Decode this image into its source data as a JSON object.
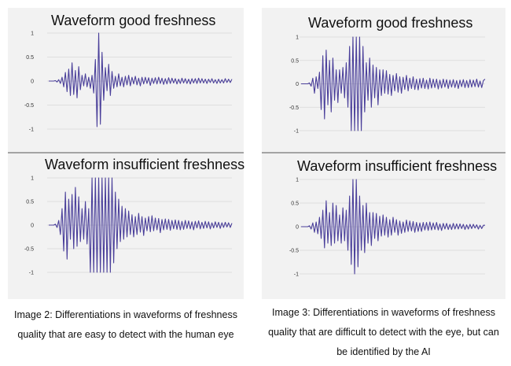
{
  "captions": {
    "left": "Image 2: Differentiations in waveforms of freshness quality that are easy to detect with the human eye",
    "right": "Image 3: Differentiations in waveforms of freshness quality that are difficult to detect with the eye, but can be identified by the AI"
  },
  "colors": {
    "panel_bg": "#f2f2f2",
    "wave": "#4a3f9a",
    "grid": "#d8d8d8"
  },
  "chart_data": [
    {
      "type": "line",
      "title": "Waveform good freshness",
      "yticks": [
        "1",
        "0.5",
        "0",
        "-0.5",
        "-1"
      ],
      "ylim": [
        -1,
        1
      ],
      "x": [
        0,
        1,
        2,
        3,
        4,
        5,
        6,
        7,
        8,
        9,
        10,
        11,
        12,
        13,
        14,
        15,
        16,
        17,
        18,
        19,
        20,
        21,
        22,
        23,
        24,
        25,
        26,
        27,
        28,
        29,
        30,
        31,
        32,
        33,
        34,
        35,
        36,
        37,
        38,
        39,
        40,
        41,
        42,
        43,
        44,
        45,
        46,
        47,
        48,
        49,
        50,
        51,
        52,
        53,
        54,
        55,
        56,
        57,
        58,
        59,
        60,
        61,
        62,
        63,
        64,
        65,
        66,
        67,
        68,
        69,
        70,
        71,
        72,
        73,
        74,
        75,
        76,
        77,
        78,
        79,
        80,
        81,
        82,
        83,
        84,
        85,
        86,
        87,
        88,
        89,
        90,
        91,
        92,
        93,
        94,
        95,
        96,
        97,
        98,
        99,
        100,
        101,
        102,
        103,
        104,
        105,
        106,
        107,
        108,
        109,
        110
      ],
      "series": [
        {
          "values": [
            0,
            0,
            0,
            0,
            0.01,
            -0.02,
            0.03,
            -0.05,
            0.08,
            -0.12,
            0.18,
            -0.22,
            0.25,
            -0.3,
            0.38,
            -0.28,
            0.22,
            -0.35,
            0.3,
            -0.18,
            0.12,
            -0.1,
            0.15,
            -0.12,
            0.08,
            -0.15,
            0.12,
            -0.25,
            0.45,
            -0.95,
            1.0,
            -0.9,
            0.6,
            -0.4,
            0.28,
            -0.2,
            0.35,
            -0.3,
            0.2,
            -0.15,
            0.1,
            -0.12,
            0.15,
            -0.1,
            0.08,
            -0.12,
            0.1,
            -0.08,
            0.12,
            -0.1,
            0.08,
            -0.06,
            0.1,
            -0.08,
            0.06,
            -0.1,
            0.08,
            -0.06,
            0.08,
            -0.05,
            0.07,
            -0.09,
            0.06,
            -0.05,
            0.07,
            -0.06,
            0.08,
            -0.05,
            0.06,
            -0.07,
            0.05,
            -0.06,
            0.07,
            -0.05,
            0.06,
            -0.04,
            0.05,
            -0.06,
            0.04,
            -0.05,
            0.06,
            -0.04,
            0.05,
            -0.05,
            0.04,
            -0.06,
            0.05,
            -0.04,
            0.05,
            -0.05,
            0.06,
            -0.04,
            0.05,
            -0.04,
            0.04,
            -0.05,
            0.04,
            -0.03,
            0.05,
            -0.04,
            0.03,
            -0.05,
            0.04,
            -0.04,
            0.03,
            -0.04,
            0.05,
            -0.03,
            0.04,
            -0.03,
            0.04
          ]
        }
      ]
    },
    {
      "type": "line",
      "title": "Waveform insufficient freshness",
      "yticks": [
        "1",
        "0.5",
        "0",
        "-0.5",
        "-1"
      ],
      "ylim": [
        -1,
        1
      ],
      "x": [
        0,
        1,
        2,
        3,
        4,
        5,
        6,
        7,
        8,
        9,
        10,
        11,
        12,
        13,
        14,
        15,
        16,
        17,
        18,
        19,
        20,
        21,
        22,
        23,
        24,
        25,
        26,
        27,
        28,
        29,
        30,
        31,
        32,
        33,
        34,
        35,
        36,
        37,
        38,
        39,
        40,
        41,
        42,
        43,
        44,
        45,
        46,
        47,
        48,
        49,
        50,
        51,
        52,
        53,
        54,
        55,
        56,
        57,
        58,
        59,
        60,
        61,
        62,
        63,
        64,
        65,
        66,
        67,
        68,
        69,
        70,
        71,
        72,
        73,
        74,
        75,
        76,
        77,
        78,
        79,
        80,
        81,
        82,
        83,
        84,
        85,
        86,
        87,
        88,
        89,
        90,
        91,
        92,
        93,
        94,
        95,
        96,
        97,
        98,
        99,
        100,
        101,
        102,
        103,
        104,
        105,
        106,
        107,
        108,
        109,
        110
      ],
      "series": [
        {
          "values": [
            0,
            0,
            0,
            0,
            0.02,
            -0.05,
            0.1,
            -0.2,
            0.35,
            -0.55,
            0.7,
            -0.72,
            0.55,
            -0.3,
            0.65,
            -0.5,
            0.8,
            -0.45,
            0.6,
            -0.35,
            0.35,
            -0.3,
            0.5,
            -0.4,
            0.35,
            -1.0,
            1.0,
            -1.0,
            1.0,
            -1.0,
            1.0,
            -1.0,
            1.0,
            -1.0,
            1.0,
            -1.0,
            1.0,
            -1.0,
            1.0,
            -0.8,
            0.7,
            -0.5,
            0.55,
            -0.35,
            0.4,
            -0.3,
            0.35,
            -0.25,
            0.3,
            -0.2,
            0.22,
            -0.25,
            0.18,
            -0.2,
            0.25,
            -0.15,
            0.18,
            -0.22,
            0.15,
            -0.12,
            0.18,
            -0.14,
            0.2,
            -0.12,
            0.15,
            -0.1,
            0.14,
            -0.16,
            0.12,
            -0.1,
            0.13,
            -0.09,
            0.12,
            -0.11,
            0.1,
            -0.08,
            0.11,
            -0.09,
            0.1,
            -0.1,
            0.08,
            -0.09,
            0.1,
            -0.07,
            0.09,
            -0.08,
            0.07,
            -0.1,
            0.08,
            -0.06,
            0.09,
            -0.08,
            0.06,
            -0.07,
            0.08,
            -0.06,
            0.07,
            -0.08,
            0.05,
            -0.06,
            0.07,
            -0.05,
            0.06,
            -0.07,
            0.05,
            -0.05,
            0.06,
            -0.04,
            0.05,
            -0.05,
            0.04
          ]
        }
      ]
    },
    {
      "type": "line",
      "title": "Waveform good freshness",
      "yticks": [
        "1",
        "0.5",
        "0",
        "-0.5",
        "-1"
      ],
      "ylim": [
        -1,
        1
      ],
      "x": [
        0,
        1,
        2,
        3,
        4,
        5,
        6,
        7,
        8,
        9,
        10,
        11,
        12,
        13,
        14,
        15,
        16,
        17,
        18,
        19,
        20,
        21,
        22,
        23,
        24,
        25,
        26,
        27,
        28,
        29,
        30,
        31,
        32,
        33,
        34,
        35,
        36,
        37,
        38,
        39,
        40,
        41,
        42,
        43,
        44,
        45,
        46,
        47,
        48,
        49,
        50,
        51,
        52,
        53,
        54,
        55,
        56,
        57,
        58,
        59,
        60,
        61,
        62,
        63,
        64,
        65,
        66,
        67,
        68,
        69,
        70,
        71,
        72,
        73,
        74,
        75,
        76,
        77,
        78,
        79,
        80,
        81,
        82,
        83,
        84,
        85,
        86,
        87,
        88,
        89,
        90,
        91,
        92,
        93,
        94,
        95,
        96,
        97,
        98,
        99,
        100,
        101,
        102,
        103,
        104,
        105,
        106,
        107,
        108,
        109,
        110
      ],
      "series": [
        {
          "values": [
            0,
            0,
            0,
            0,
            0,
            0.02,
            -0.05,
            0.12,
            -0.2,
            0.15,
            -0.1,
            0.25,
            -0.55,
            0.6,
            -0.75,
            0.72,
            -0.45,
            0.5,
            -0.6,
            0.55,
            -0.35,
            0.3,
            -0.4,
            0.3,
            -0.2,
            0.35,
            -0.3,
            0.45,
            -0.5,
            0.8,
            -1.0,
            1.0,
            -1.0,
            1.0,
            -1.0,
            1.0,
            -1.0,
            0.8,
            -0.6,
            0.45,
            -0.35,
            0.55,
            -0.5,
            0.4,
            -0.3,
            0.35,
            -0.45,
            0.3,
            -0.25,
            0.3,
            -0.2,
            0.28,
            -0.22,
            0.2,
            -0.25,
            0.18,
            -0.15,
            0.22,
            -0.18,
            0.15,
            -0.2,
            0.14,
            -0.12,
            0.18,
            -0.15,
            0.12,
            -0.1,
            0.15,
            -0.12,
            0.1,
            -0.13,
            0.11,
            -0.09,
            0.12,
            -0.1,
            0.08,
            -0.11,
            0.12,
            -0.09,
            0.1,
            -0.08,
            0.1,
            -0.11,
            0.08,
            -0.09,
            0.1,
            -0.07,
            0.09,
            -0.1,
            0.08,
            -0.07,
            0.09,
            -0.08,
            0.07,
            -0.1,
            0.08,
            -0.06,
            0.09,
            -0.08,
            0.07,
            -0.08,
            0.09,
            -0.07,
            0.08,
            -0.06,
            0.1,
            -0.07,
            0.06,
            -0.08,
            0.07,
            0.1
          ]
        }
      ]
    },
    {
      "type": "line",
      "title": "Waveform insufficient freshness",
      "yticks": [
        "1",
        "0.5",
        "0",
        "-0.5",
        "-1"
      ],
      "ylim": [
        -1,
        1
      ],
      "x": [
        0,
        1,
        2,
        3,
        4,
        5,
        6,
        7,
        8,
        9,
        10,
        11,
        12,
        13,
        14,
        15,
        16,
        17,
        18,
        19,
        20,
        21,
        22,
        23,
        24,
        25,
        26,
        27,
        28,
        29,
        30,
        31,
        32,
        33,
        34,
        35,
        36,
        37,
        38,
        39,
        40,
        41,
        42,
        43,
        44,
        45,
        46,
        47,
        48,
        49,
        50,
        51,
        52,
        53,
        54,
        55,
        56,
        57,
        58,
        59,
        60,
        61,
        62,
        63,
        64,
        65,
        66,
        67,
        68,
        69,
        70,
        71,
        72,
        73,
        74,
        75,
        76,
        77,
        78,
        79,
        80,
        81,
        82,
        83,
        84,
        85,
        86,
        87,
        88,
        89,
        90,
        91,
        92,
        93,
        94,
        95,
        96,
        97,
        98,
        99,
        100,
        101,
        102,
        103,
        104,
        105,
        106,
        107,
        108,
        109,
        110
      ],
      "series": [
        {
          "values": [
            0,
            0,
            0,
            0,
            0,
            0.02,
            -0.05,
            0.08,
            -0.12,
            0.1,
            -0.15,
            0.2,
            -0.25,
            0.35,
            -0.45,
            0.55,
            -0.35,
            0.3,
            -0.4,
            0.5,
            -0.35,
            0.45,
            -0.3,
            0.25,
            -0.35,
            0.4,
            -0.3,
            0.35,
            -0.5,
            0.65,
            -0.8,
            1.0,
            -1.0,
            1.0,
            -0.85,
            0.65,
            -0.5,
            0.45,
            -0.55,
            0.5,
            -0.35,
            0.3,
            -0.4,
            0.3,
            -0.25,
            0.28,
            -0.3,
            0.22,
            -0.2,
            0.25,
            -0.18,
            0.2,
            -0.22,
            0.15,
            -0.18,
            0.2,
            -0.12,
            0.15,
            -0.18,
            0.12,
            -0.14,
            0.1,
            -0.12,
            0.14,
            -0.1,
            0.12,
            -0.09,
            0.11,
            -0.12,
            0.09,
            -0.1,
            0.08,
            -0.1,
            0.09,
            -0.07,
            0.09,
            -0.08,
            0.1,
            -0.07,
            0.08,
            -0.06,
            0.09,
            -0.07,
            0.06,
            -0.08,
            0.07,
            -0.05,
            0.07,
            -0.06,
            0.05,
            -0.06,
            0.07,
            -0.05,
            0.06,
            -0.05,
            0.06,
            -0.04,
            0.05,
            -0.06,
            0.04,
            -0.05,
            0.05,
            -0.04,
            0.05,
            -0.03,
            0.04,
            -0.05,
            0.03,
            -0.04,
            0.03,
            0.03
          ]
        }
      ]
    }
  ]
}
